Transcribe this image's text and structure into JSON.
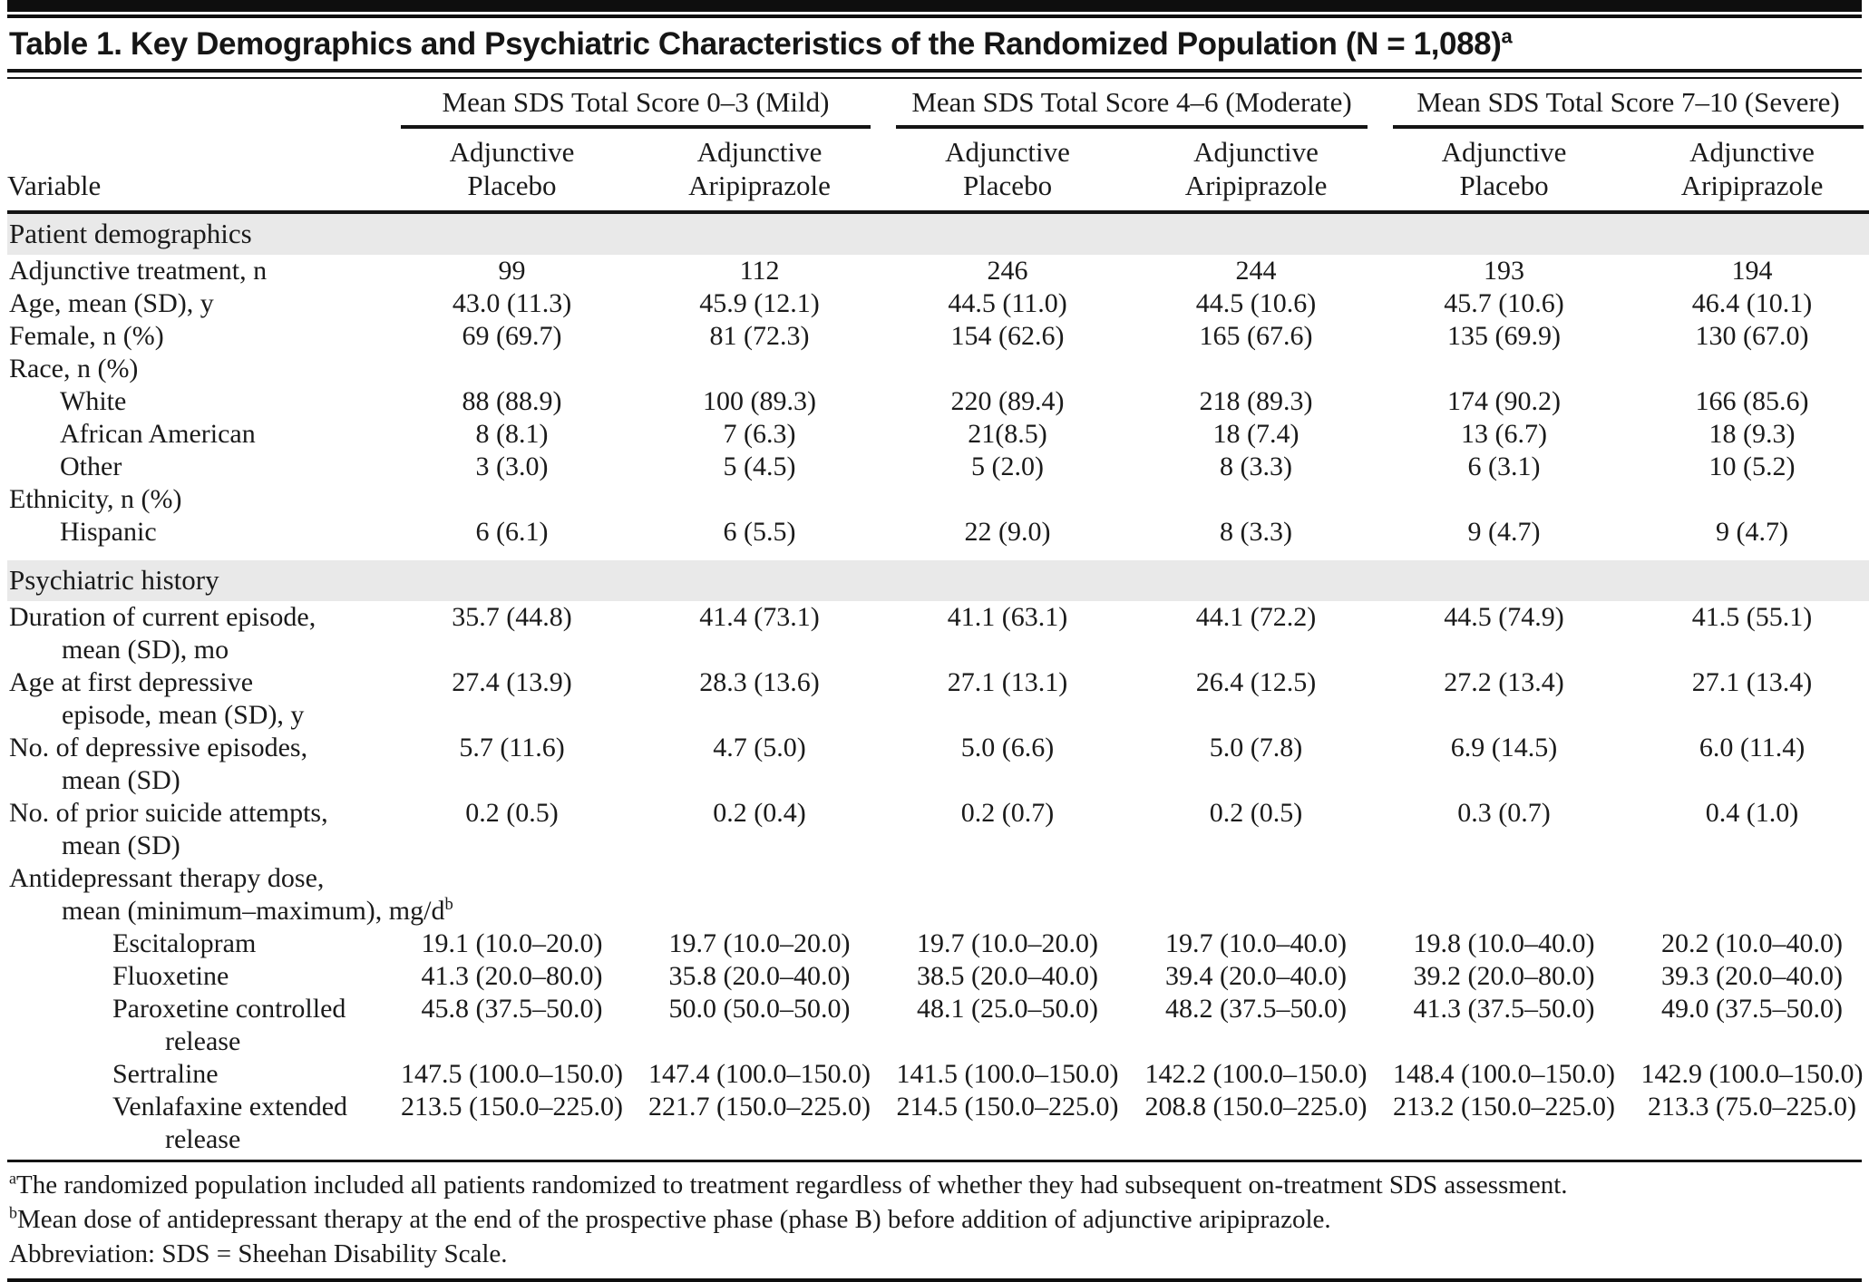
{
  "title": "Table 1. Key Demographics and Psychiatric Characteristics of the Randomized Population (N = 1,088)",
  "title_sup": "a",
  "columns": {
    "variable_label": "Variable",
    "groups": [
      {
        "label": "Mean SDS Total Score 0–3 (Mild)"
      },
      {
        "label": "Mean SDS Total Score 4–6 (Moderate)"
      },
      {
        "label": "Mean SDS Total Score 7–10 (Severe)"
      }
    ],
    "subcolumns": [
      {
        "line1": "Adjunctive",
        "line2": "Placebo"
      },
      {
        "line1": "Adjunctive",
        "line2": "Aripiprazole"
      },
      {
        "line1": "Adjunctive",
        "line2": "Placebo"
      },
      {
        "line1": "Adjunctive",
        "line2": "Aripiprazole"
      },
      {
        "line1": "Adjunctive",
        "line2": "Placebo"
      },
      {
        "line1": "Adjunctive",
        "line2": "Aripiprazole"
      }
    ]
  },
  "rows": [
    {
      "type": "section",
      "label": "Patient demographics",
      "first": true
    },
    {
      "type": "data",
      "indent": 0,
      "lines": [
        "Adjunctive treatment, n"
      ],
      "values": [
        "99",
        "112",
        "246",
        "244",
        "193",
        "194"
      ]
    },
    {
      "type": "data",
      "indent": 0,
      "lines": [
        "Age, mean (SD), y"
      ],
      "values": [
        "43.0 (11.3)",
        "45.9 (12.1)",
        "44.5 (11.0)",
        "44.5 (10.6)",
        "45.7 (10.6)",
        "46.4 (10.1)"
      ]
    },
    {
      "type": "data",
      "indent": 0,
      "lines": [
        "Female, n (%)"
      ],
      "values": [
        "69 (69.7)",
        "81 (72.3)",
        "154 (62.6)",
        "165 (67.6)",
        "135 (69.9)",
        "130 (67.0)"
      ]
    },
    {
      "type": "data",
      "indent": 0,
      "lines": [
        "Race, n (%)"
      ],
      "values": [
        "",
        "",
        "",
        "",
        "",
        ""
      ]
    },
    {
      "type": "data",
      "indent": 1,
      "lines": [
        "White"
      ],
      "values": [
        "88 (88.9)",
        "100 (89.3)",
        "220 (89.4)",
        "218 (89.3)",
        "174 (90.2)",
        "166 (85.6)"
      ]
    },
    {
      "type": "data",
      "indent": 1,
      "lines": [
        "African American"
      ],
      "values": [
        "8 (8.1)",
        "7 (6.3)",
        "21(8.5)",
        "18 (7.4)",
        "13 (6.7)",
        "18 (9.3)"
      ]
    },
    {
      "type": "data",
      "indent": 1,
      "lines": [
        "Other"
      ],
      "values": [
        "3 (3.0)",
        "5 (4.5)",
        "5 (2.0)",
        "8 (3.3)",
        "6 (3.1)",
        "10 (5.2)"
      ]
    },
    {
      "type": "data",
      "indent": 0,
      "lines": [
        "Ethnicity, n (%)"
      ],
      "values": [
        "",
        "",
        "",
        "",
        "",
        ""
      ]
    },
    {
      "type": "data",
      "indent": 1,
      "lines": [
        "Hispanic"
      ],
      "values": [
        "6 (6.1)",
        "6 (5.5)",
        "22 (9.0)",
        "8 (3.3)",
        "9 (4.7)",
        "9 (4.7)"
      ]
    },
    {
      "type": "section",
      "label": "Psychiatric history",
      "first": false
    },
    {
      "type": "data",
      "indent": 0,
      "lines": [
        "Duration of current episode,",
        "mean (SD), mo"
      ],
      "values": [
        "35.7 (44.8)",
        "41.4 (73.1)",
        "41.1 (63.1)",
        "44.1 (72.2)",
        "44.5 (74.9)",
        "41.5 (55.1)"
      ]
    },
    {
      "type": "data",
      "indent": 0,
      "lines": [
        "Age at first depressive",
        "episode, mean (SD), y"
      ],
      "values": [
        "27.4 (13.9)",
        "28.3 (13.6)",
        "27.1 (13.1)",
        "26.4 (12.5)",
        "27.2 (13.4)",
        "27.1 (13.4)"
      ]
    },
    {
      "type": "data",
      "indent": 0,
      "lines": [
        "No. of depressive episodes,",
        "mean (SD)"
      ],
      "values": [
        "5.7 (11.6)",
        "4.7 (5.0)",
        "5.0 (6.6)",
        "5.0 (7.8)",
        "6.9 (14.5)",
        "6.0 (11.4)"
      ]
    },
    {
      "type": "data",
      "indent": 0,
      "lines": [
        "No. of prior suicide attempts,",
        "mean (SD)"
      ],
      "values": [
        "0.2 (0.5)",
        "0.2 (0.4)",
        "0.2 (0.7)",
        "0.2 (0.5)",
        "0.3 (0.7)",
        "0.4 (1.0)"
      ]
    },
    {
      "type": "data",
      "indent": 0,
      "lines": [
        "Antidepressant therapy dose,",
        "mean (minimum–maximum), mg/d"
      ],
      "label_sup": "b",
      "values": [
        "",
        "",
        "",
        "",
        "",
        ""
      ]
    },
    {
      "type": "data",
      "indent": 2,
      "lines": [
        "Escitalopram"
      ],
      "values": [
        "19.1 (10.0–20.0)",
        "19.7 (10.0–20.0)",
        "19.7 (10.0–20.0)",
        "19.7 (10.0–40.0)",
        "19.8 (10.0–40.0)",
        "20.2 (10.0–40.0)"
      ]
    },
    {
      "type": "data",
      "indent": 2,
      "lines": [
        "Fluoxetine"
      ],
      "values": [
        "41.3 (20.0–80.0)",
        "35.8 (20.0–40.0)",
        "38.5 (20.0–40.0)",
        "39.4 (20.0–40.0)",
        "39.2 (20.0–80.0)",
        "39.3 (20.0–40.0)"
      ]
    },
    {
      "type": "data",
      "indent": 2,
      "lines": [
        "Paroxetine controlled",
        "release"
      ],
      "values": [
        "45.8 (37.5–50.0)",
        "50.0 (50.0–50.0)",
        "48.1 (25.0–50.0)",
        "48.2 (37.5–50.0)",
        "41.3 (37.5–50.0)",
        "49.0 (37.5–50.0)"
      ]
    },
    {
      "type": "data",
      "indent": 2,
      "lines": [
        "Sertraline"
      ],
      "values": [
        "147.5 (100.0–150.0)",
        "147.4 (100.0–150.0)",
        "141.5 (100.0–150.0)",
        "142.2 (100.0–150.0)",
        "148.4 (100.0–150.0)",
        "142.9 (100.0–150.0)"
      ]
    },
    {
      "type": "data",
      "indent": 2,
      "lines": [
        "Venlafaxine extended",
        "release"
      ],
      "values": [
        "213.5 (150.0–225.0)",
        "221.7 (150.0–225.0)",
        "214.5 (150.0–225.0)",
        "208.8 (150.0–225.0)",
        "213.2 (150.0–225.0)",
        "213.3 (75.0–225.0)"
      ]
    }
  ],
  "footnotes": [
    {
      "sup": "a",
      "text": "The randomized population included all patients randomized to treatment regardless of whether they had subsequent on-treatment SDS assessment."
    },
    {
      "sup": "b",
      "text": "Mean dose of antidepressant therapy at the end of the prospective phase (phase B) before addition of adjunctive aripiprazole."
    },
    {
      "sup": "",
      "text": "Abbreviation: SDS = Sheehan Disability Scale."
    }
  ],
  "colors": {
    "rule": "#141414",
    "section_band": "#e9e9e9",
    "text": "#1a1a1a"
  }
}
